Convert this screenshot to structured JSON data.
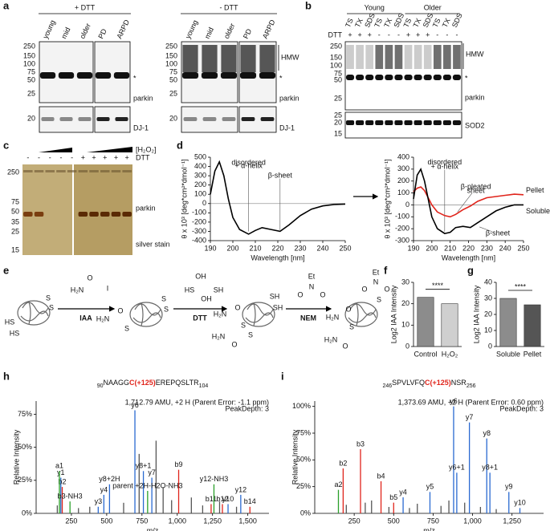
{
  "panel_labels": [
    "a",
    "b",
    "c",
    "d",
    "e",
    "f",
    "g",
    "h",
    "i"
  ],
  "blots": {
    "a": {
      "groups": [
        {
          "title": "+ DTT",
          "lanes": [
            "young",
            "mid",
            "older",
            "PD",
            "ARPD"
          ]
        },
        {
          "title": "- DTT",
          "lanes": [
            "young",
            "mid",
            "older",
            "PD",
            "ARPD"
          ]
        }
      ],
      "mw_upper": [
        "250",
        "150",
        "100",
        "75",
        "50",
        "25"
      ],
      "mw_lower": [
        "20"
      ],
      "labels": {
        "star": "*",
        "parkin": "parkin",
        "dj1": "DJ-1",
        "hmw": "HMW"
      }
    },
    "b": {
      "groups": [
        {
          "title": "Young",
          "lanes": [
            "TS",
            "TX",
            "SDS",
            "TS",
            "TX",
            "SDS"
          ],
          "dtt": [
            "+",
            "+",
            "+",
            "-",
            "-",
            "-"
          ]
        },
        {
          "title": "Older",
          "lanes": [
            "TS",
            "TX",
            "SDS",
            "TS",
            "TX",
            "SDS"
          ],
          "dtt": [
            "+",
            "+",
            "+",
            "-",
            "-",
            "-"
          ]
        }
      ],
      "dtt_label": "DTT",
      "mw_upper": [
        "250",
        "150",
        "100",
        "75",
        "50",
        "25"
      ],
      "mw_lower": [
        "25",
        "20",
        "15"
      ],
      "labels": {
        "hmw": "HMW",
        "star": "*",
        "parkin": "parkin",
        "sod2": "SOD2"
      }
    },
    "c": {
      "h2o2": "[H₂O₂]",
      "dtt_label": "DTT",
      "dtt": [
        "-",
        "-",
        "-",
        "-",
        "-",
        "+",
        "+",
        "+",
        "+",
        "+"
      ],
      "mw": [
        "250",
        "75",
        "50",
        "35",
        "25",
        "15"
      ],
      "labels": {
        "parkin": "parkin",
        "stain": "silver stain"
      }
    }
  },
  "scheme": {
    "reagents": [
      {
        "name": "IAA",
        "color": "#1f3fcf"
      },
      {
        "name": "DTT",
        "color": "#000000"
      },
      {
        "name": "NEM",
        "color": "#e0241b"
      }
    ],
    "atoms": [
      [
        "HS",
        "HS",
        "S",
        "S"
      ],
      [
        "O",
        "H₂N",
        "I"
      ],
      [
        "H₂N",
        "O",
        "S",
        "S",
        "S"
      ],
      [
        "OH",
        "HS",
        "SH",
        "OH"
      ],
      [
        "H₂N",
        "O",
        "S",
        "SH",
        "SH",
        "H₂N",
        "O",
        "S"
      ],
      [
        "Et",
        "N",
        "O",
        "O"
      ],
      [
        "Et",
        "N",
        "O",
        "O",
        "S",
        "H₂N",
        "O",
        "S",
        "H₂N",
        "O"
      ]
    ]
  },
  "chart_data": [
    {
      "type": "line",
      "ylabel": "θ x 10³ [deg*cm²*dmol⁻¹]",
      "xlabel": "Wavelength [nm]",
      "x": [
        190,
        192,
        194,
        196,
        198,
        200,
        203,
        207,
        210,
        213,
        217,
        221,
        225,
        230,
        235,
        240,
        245,
        250
      ],
      "series": [
        {
          "color": "#000000",
          "values": [
            100,
            350,
            450,
            300,
            50,
            -150,
            -280,
            -330,
            -290,
            -260,
            -280,
            -300,
            -230,
            -130,
            -60,
            -25,
            -10,
            -5
          ]
        }
      ],
      "xlim": [
        190,
        250
      ],
      "ylim": [
        -400,
        500
      ],
      "xticks": [
        190,
        200,
        210,
        220,
        230,
        240,
        250
      ],
      "yticks": [
        -400,
        -300,
        -200,
        -100,
        0,
        100,
        200,
        300,
        400,
        500
      ],
      "annotations": [
        "disordered",
        "+ α-helix",
        "β-sheet"
      ]
    },
    {
      "type": "line",
      "ylabel": "θ x 10³ [deg*cm²*dmol⁻¹]",
      "xlabel": "Wavelength [nm]",
      "x": [
        190,
        192,
        194,
        196,
        198,
        200,
        203,
        207,
        210,
        213,
        217,
        221,
        225,
        230,
        235,
        240,
        245,
        250
      ],
      "series": [
        {
          "name": "Pellet",
          "color": "#e0241b",
          "values": [
            110,
            140,
            150,
            120,
            60,
            0,
            -60,
            -90,
            -100,
            -80,
            -40,
            -10,
            30,
            60,
            70,
            80,
            90,
            85
          ]
        },
        {
          "name": "Soluble",
          "color": "#000000",
          "values": [
            50,
            250,
            300,
            200,
            50,
            -100,
            -200,
            -240,
            -230,
            -190,
            -180,
            -190,
            -150,
            -100,
            -50,
            -20,
            0,
            0
          ]
        }
      ],
      "xlim": [
        190,
        250
      ],
      "ylim": [
        -300,
        400
      ],
      "xticks": [
        190,
        200,
        210,
        220,
        230,
        240,
        250
      ],
      "yticks": [
        -300,
        -200,
        -100,
        0,
        100,
        200,
        300,
        400
      ],
      "annotations": [
        "disordered",
        "+ α-helix",
        "β-pleated",
        "sheet",
        "β-sheet"
      ]
    },
    {
      "type": "bar",
      "ylabel": "Log2 IAA Intensity",
      "categories": [
        "Control",
        "H₂O₂"
      ],
      "values": [
        23,
        20
      ],
      "colors": [
        "#8c8c8c",
        "#cfcfcf"
      ],
      "ylim": [
        0,
        30
      ],
      "yticks": [
        0,
        10,
        20,
        30
      ],
      "significance": "****"
    },
    {
      "type": "bar",
      "ylabel": "Log2 IAA Intensity",
      "categories": [
        "Soluble",
        "Pellet"
      ],
      "values": [
        30,
        26
      ],
      "colors": [
        "#8c8c8c",
        "#555555"
      ],
      "ylim": [
        0,
        40
      ],
      "yticks": [
        0,
        10,
        20,
        30,
        40
      ],
      "significance": "****"
    },
    {
      "type": "spectrum",
      "title_parts": {
        "start": "90",
        "pre": "NAAGG",
        "mod": "C(+125)",
        "post": "EREPQSLTR",
        "end": "104"
      },
      "info": [
        "1,712.79 AMU, +2 H (Parent Error: -1.1 ppm)",
        "PeakDepth: 3"
      ],
      "ylabel": "Relative Intensity",
      "xlabel": "m/z",
      "xlim": [
        0,
        1650
      ],
      "ylim": [
        0,
        85
      ],
      "xticks": [
        250,
        500,
        750,
        {
          "value": 1000,
          "label": "1,000"
        },
        {
          "value": 1250,
          "label": "1,250"
        },
        {
          "value": 1500,
          "label": "1,500"
        }
      ],
      "yticks": [
        {
          "value": 0,
          "label": "0%"
        },
        {
          "value": 25,
          "label": "25%"
        },
        {
          "value": 50,
          "label": "50%"
        },
        {
          "value": 75,
          "label": "75%"
        }
      ],
      "series": [
        {
          "color": "#2a6ad1",
          "x": [
            175,
            440,
            480,
            520,
            700,
            760,
            820,
            1360,
            1450
          ],
          "values": [
            27,
            5,
            14,
            22,
            78,
            32,
            27,
            7,
            14
          ],
          "labels": [
            "y1",
            "y3",
            "y4",
            "y8+2H",
            "y6",
            "y8+1",
            "y7",
            "y10",
            "y12"
          ]
        },
        {
          "color": "#e0241b",
          "x": [
            185,
            1010,
            1240,
            1320,
            1515
          ],
          "values": [
            20,
            33,
            7,
            7,
            5
          ],
          "labels": [
            "b2",
            "b9",
            "b11",
            "b12",
            "b14"
          ]
        },
        {
          "color": "#2aa02a",
          "x": [
            165,
            240,
            790,
            1260
          ],
          "values": [
            32,
            9,
            17,
            22
          ],
          "labels": [
            "a1",
            "b3-NH3",
            "parent +2H-H2O-NH3",
            "y12-NH3"
          ]
        },
        {
          "color": "#555555",
          "x": [
            150,
            300,
            380,
            620,
            730,
            850,
            900,
            960,
            1100,
            1180,
            1300,
            1420
          ],
          "values": [
            6,
            4,
            5,
            8,
            45,
            55,
            20,
            10,
            12,
            6,
            9,
            5
          ]
        }
      ]
    },
    {
      "type": "spectrum",
      "title_parts": {
        "start": "246",
        "pre": "SPVLVFQ",
        "mod": "C(+125)",
        "post": "NSR",
        "end": "256"
      },
      "info": [
        "1,373.69 AMU, +2 H (Parent Error: 0.60 ppm)",
        "PeakDepth: 3"
      ],
      "ylabel": "Relative Intensity",
      "xlabel": "m/z",
      "xlim": [
        0,
        1450
      ],
      "ylim": [
        0,
        105
      ],
      "xticks": [
        250,
        500,
        750,
        {
          "value": 1000,
          "label": "1,000"
        },
        {
          "value": 1250,
          "label": "1,250"
        }
      ],
      "yticks": [
        {
          "value": 0,
          "label": "0%"
        },
        {
          "value": 25,
          "label": "25%"
        },
        {
          "value": 50,
          "label": "50%"
        },
        {
          "value": 75,
          "label": "75%"
        },
        {
          "value": 100,
          "label": "100%"
        }
      ],
      "series": [
        {
          "color": "#2a6ad1",
          "x": [
            560,
            730,
            880,
            900,
            980,
            1090,
            1110,
            1230,
            1300
          ],
          "values": [
            15,
            20,
            100,
            38,
            85,
            70,
            38,
            20,
            5
          ],
          "labels": [
            "y4",
            "y5",
            "y6",
            "y6+1",
            "y7",
            "y8",
            "y8+1",
            "y9",
            "y10"
          ]
        },
        {
          "color": "#e0241b",
          "x": [
            180,
            290,
            420,
            500
          ],
          "values": [
            42,
            60,
            30,
            10
          ],
          "labels": [
            "b2",
            "b3",
            "b4",
            "b5"
          ]
        },
        {
          "color": "#2aa02a",
          "x": [
            150
          ],
          "values": [
            22
          ],
          "labels": [
            "a2"
          ]
        },
        {
          "color": "#555555",
          "x": [
            200,
            320,
            360,
            470,
            600,
            650,
            800,
            850,
            950,
            1050,
            1150
          ],
          "values": [
            8,
            10,
            12,
            6,
            5,
            9,
            7,
            12,
            10,
            6,
            4
          ]
        }
      ]
    }
  ]
}
